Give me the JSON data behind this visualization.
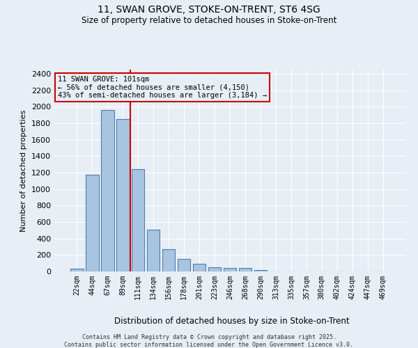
{
  "title1": "11, SWAN GROVE, STOKE-ON-TRENT, ST6 4SG",
  "title2": "Size of property relative to detached houses in Stoke-on-Trent",
  "xlabel": "Distribution of detached houses by size in Stoke-on-Trent",
  "ylabel": "Number of detached properties",
  "categories": [
    "22sqm",
    "44sqm",
    "67sqm",
    "89sqm",
    "111sqm",
    "134sqm",
    "156sqm",
    "178sqm",
    "201sqm",
    "223sqm",
    "246sqm",
    "268sqm",
    "290sqm",
    "313sqm",
    "335sqm",
    "357sqm",
    "380sqm",
    "402sqm",
    "424sqm",
    "447sqm",
    "469sqm"
  ],
  "values": [
    30,
    1175,
    1960,
    1850,
    1240,
    510,
    270,
    155,
    90,
    50,
    40,
    40,
    20,
    0,
    0,
    0,
    0,
    0,
    0,
    0,
    0
  ],
  "bar_color": "#a8c4e0",
  "bar_edge_color": "#4a7db5",
  "bg_color": "#e8eef5",
  "grid_color": "#ffffff",
  "vline_x": 3.5,
  "vline_color": "#cc0000",
  "annotation_title": "11 SWAN GROVE: 101sqm",
  "annotation_line1": "← 56% of detached houses are smaller (4,150)",
  "annotation_line2": "43% of semi-detached houses are larger (3,184) →",
  "annotation_box_color": "#cc0000",
  "ylim": [
    0,
    2450
  ],
  "yticks": [
    0,
    200,
    400,
    600,
    800,
    1000,
    1200,
    1400,
    1600,
    1800,
    2000,
    2200,
    2400
  ],
  "footer1": "Contains HM Land Registry data © Crown copyright and database right 2025.",
  "footer2": "Contains public sector information licensed under the Open Government Licence v3.0."
}
